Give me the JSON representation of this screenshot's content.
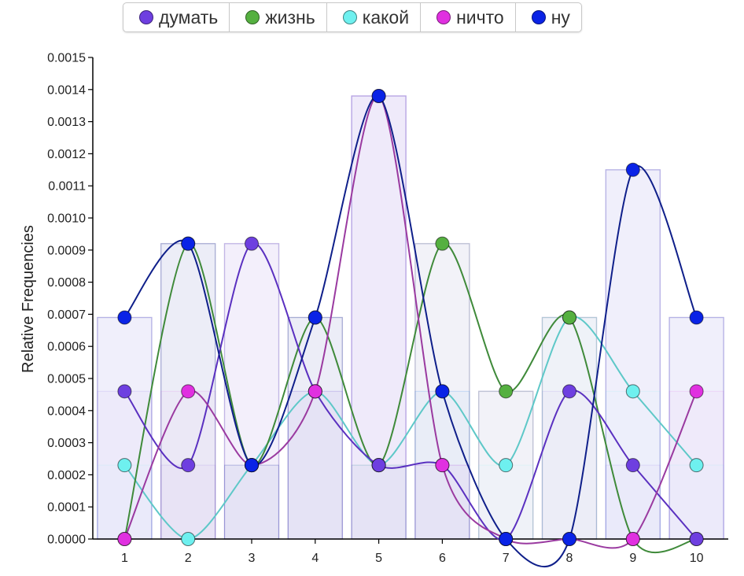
{
  "chart_data": {
    "type": "line",
    "ylabel": "Relative Frequencies",
    "xlabel": "",
    "ylim": [
      0,
      0.0015
    ],
    "y_ticks": [
      "0.0000",
      "0.0001",
      "0.0002",
      "0.0003",
      "0.0004",
      "0.0005",
      "0.0006",
      "0.0007",
      "0.0008",
      "0.0009",
      "0.0010",
      "0.0011",
      "0.0012",
      "0.0013",
      "0.0014",
      "0.0015"
    ],
    "x": [
      1,
      2,
      3,
      4,
      5,
      6,
      7,
      8,
      9,
      10
    ],
    "bars": [
      0.00069,
      0.00092,
      0.00092,
      0.00069,
      0.00138,
      0.00092,
      0.00046,
      0.00069,
      0.00115,
      0.00069
    ],
    "series": [
      {
        "name": "думать",
        "color": "#6e3fe0",
        "line_color": "#5a30c0",
        "values": [
          0.00046,
          0.00023,
          0.00092,
          0.00046,
          0.00023,
          0.00023,
          0.0,
          0.00046,
          0.00023,
          0.0
        ]
      },
      {
        "name": "жизнь",
        "color": "#55b040",
        "line_color": "#3f8a3a",
        "values": [
          0.0,
          0.00092,
          0.00023,
          0.00069,
          0.00023,
          0.00092,
          0.00046,
          0.00069,
          0.0,
          0.0
        ]
      },
      {
        "name": "какой",
        "color": "#6ef0ef",
        "line_color": "#5ec8c8",
        "values": [
          0.00023,
          0.0,
          0.00023,
          0.00046,
          0.00023,
          0.00046,
          0.00023,
          0.00069,
          0.00046,
          0.00023
        ]
      },
      {
        "name": "ничто",
        "color": "#e030e0",
        "line_color": "#9a3aa0",
        "values": [
          0.0,
          0.00046,
          0.00023,
          0.00046,
          0.00138,
          0.00023,
          0.0,
          0.0,
          0.0,
          0.00046
        ]
      },
      {
        "name": "ну",
        "color": "#0a23e6",
        "line_color": "#0f1f8a",
        "values": [
          0.00069,
          0.00092,
          0.00023,
          0.00069,
          0.00138,
          0.00046,
          0.0,
          0.0,
          0.00115,
          0.00069
        ]
      }
    ]
  }
}
